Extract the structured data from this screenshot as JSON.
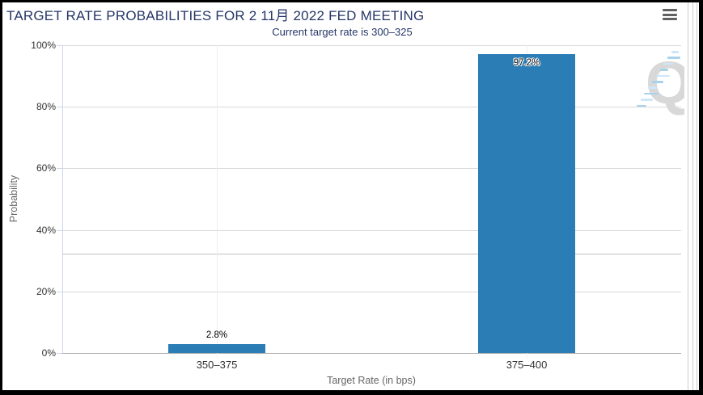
{
  "header": {
    "title": "TARGET RATE PROBABILITIES FOR 2 11月 2022 FED MEETING",
    "menu_icon": "hamburger-menu-icon"
  },
  "subtitle": "Current target rate is 300–325",
  "chart_data": {
    "type": "bar",
    "title": "TARGET RATE PROBABILITIES FOR 2 11月 2022 FED MEETING",
    "subtitle": "Current target rate is 300–325",
    "categories": [
      "350–375",
      "375–400"
    ],
    "values": [
      2.8,
      97.2
    ],
    "value_labels": [
      "2.8%",
      "97.2%"
    ],
    "xlabel": "Target Rate (in bps)",
    "ylabel": "Probability",
    "ylim": [
      0,
      100
    ],
    "yticks": [
      0,
      20,
      40,
      60,
      80,
      100
    ],
    "ytick_labels": [
      "0%",
      "20%",
      "40%",
      "60%",
      "80%",
      "100%"
    ],
    "grid": true,
    "legend": "none",
    "reference_line_pct": 32.2,
    "bar_color": "#2b7db5",
    "title_color": "#253668",
    "axis_text_color": "#333333",
    "axis_title_color": "#666666"
  },
  "watermark": {
    "letter": "Q"
  }
}
